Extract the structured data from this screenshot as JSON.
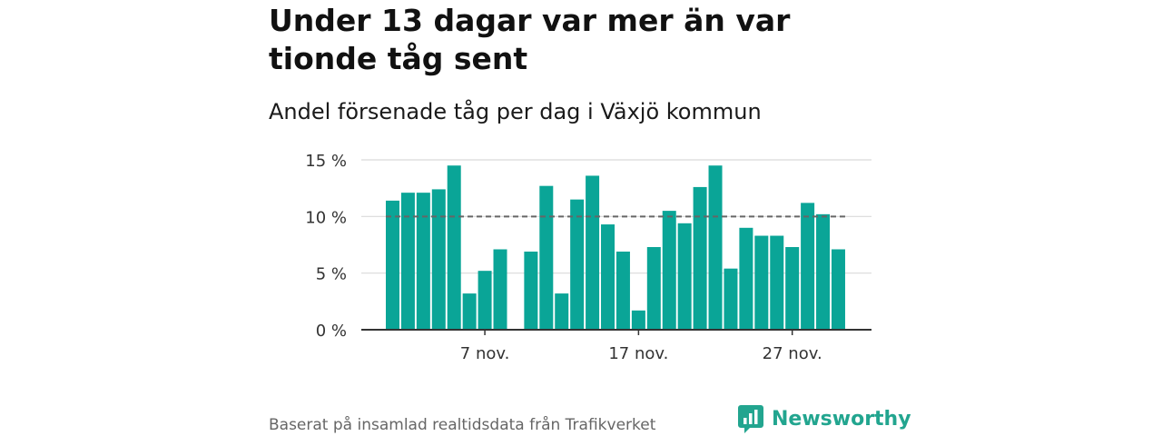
{
  "headline": "Under 13 dagar var mer än var tionde tåg sent",
  "subtitle": "Andel försenade tåg per dag i Växjö kommun",
  "source": "Baserat på insamlad realtidsdata från Trafikverket",
  "brand": {
    "name": "Newsworthy",
    "icon": "newsworthy-logo-icon"
  },
  "colors": {
    "bar": "#0aa597",
    "reference_line": "#666666",
    "grid": "#d9d9d9",
    "axis": "#333333",
    "brand": "#22a58f"
  },
  "chart_data": {
    "type": "bar",
    "x_unit": "day of November",
    "x": [
      1,
      2,
      3,
      4,
      5,
      6,
      7,
      8,
      9,
      10,
      11,
      12,
      13,
      14,
      15,
      16,
      17,
      18,
      19,
      20,
      21,
      22,
      23,
      24,
      25,
      26,
      27,
      28,
      29,
      30
    ],
    "values": [
      11.4,
      12.1,
      12.1,
      12.4,
      14.5,
      3.2,
      5.2,
      7.1,
      null,
      6.9,
      12.7,
      3.2,
      11.5,
      13.6,
      9.3,
      6.9,
      1.7,
      7.3,
      10.5,
      9.4,
      12.6,
      14.5,
      5.4,
      9.0,
      8.3,
      8.3,
      7.3,
      11.2,
      10.2,
      7.1
    ],
    "ylim": [
      0,
      15
    ],
    "yticks": [
      0,
      5,
      10,
      15
    ],
    "ytick_labels": [
      "0 %",
      "5 %",
      "10 %",
      "15 %"
    ],
    "xticks": [
      7,
      17,
      27
    ],
    "xtick_labels": [
      "7 nov.",
      "17 nov.",
      "27 nov."
    ],
    "reference_line": 10,
    "grid": true
  }
}
